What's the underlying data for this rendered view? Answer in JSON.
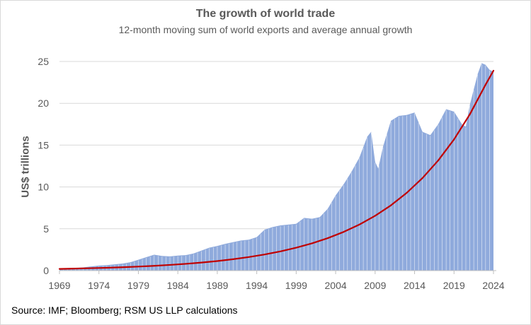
{
  "chart_data": {
    "type": "area",
    "title": "The growth of world trade",
    "subtitle": "12-month moving sum of world exports and average annual growth",
    "xlabel": "",
    "ylabel": "US$ trillions",
    "source": "Source: IMF; Bloomberg; RSM US LLP calculations",
    "xlim": [
      1969,
      2024
    ],
    "ylim": [
      0,
      25
    ],
    "grid": "horizontal",
    "legend": "none",
    "x_ticks": [
      "1969",
      "1974",
      "1979",
      "1984",
      "1989",
      "1994",
      "1999",
      "2004",
      "2009",
      "2014",
      "2019",
      "2024"
    ],
    "y_ticks": [
      "0",
      "5",
      "10",
      "15",
      "20",
      "25"
    ],
    "series": [
      {
        "type": "area",
        "color": "#8faadc",
        "x": [
          1969,
          1970,
          1971,
          1972,
          1973,
          1974,
          1975,
          1976,
          1977,
          1978,
          1979,
          1980,
          1981,
          1982,
          1983,
          1984,
          1985,
          1986,
          1987,
          1988,
          1989,
          1990,
          1991,
          1992,
          1993,
          1994,
          1995,
          1996,
          1997,
          1998,
          1999,
          2000,
          2001,
          2002,
          2003,
          2004,
          2005,
          2006,
          2007,
          2008,
          2008.5,
          2009,
          2009.4,
          2010,
          2011,
          2012,
          2013,
          2014,
          2015,
          2016,
          2017,
          2018,
          2019,
          2020,
          2020.5,
          2021,
          2022,
          2022.5,
          2023,
          2023.5,
          2024
        ],
        "values": [
          0.25,
          0.3,
          0.32,
          0.38,
          0.5,
          0.6,
          0.65,
          0.75,
          0.85,
          1.0,
          1.3,
          1.6,
          1.9,
          1.75,
          1.7,
          1.8,
          1.85,
          2.05,
          2.4,
          2.75,
          2.95,
          3.2,
          3.4,
          3.6,
          3.7,
          4.0,
          4.9,
          5.2,
          5.4,
          5.5,
          5.6,
          6.3,
          6.2,
          6.4,
          7.4,
          9.0,
          10.3,
          11.8,
          13.5,
          16.0,
          16.6,
          13.0,
          12.2,
          14.8,
          17.9,
          18.5,
          18.6,
          18.9,
          16.6,
          16.2,
          17.5,
          19.3,
          19.0,
          17.5,
          17.2,
          19.8,
          23.5,
          24.8,
          24.6,
          24.0,
          23.8
        ]
      },
      {
        "type": "line",
        "color": "#c00000",
        "x": [
          1969,
          1971,
          1973,
          1975,
          1977,
          1979,
          1981,
          1983,
          1985,
          1987,
          1989,
          1991,
          1993,
          1995,
          1997,
          1999,
          2001,
          2003,
          2005,
          2007,
          2009,
          2011,
          2013,
          2015,
          2017,
          2019,
          2021,
          2023,
          2024
        ],
        "values": [
          0.2,
          0.24,
          0.29,
          0.34,
          0.4,
          0.48,
          0.57,
          0.68,
          0.81,
          0.96,
          1.14,
          1.36,
          1.62,
          1.93,
          2.3,
          2.74,
          3.26,
          3.88,
          4.62,
          5.5,
          6.55,
          7.8,
          9.29,
          11.06,
          13.17,
          15.68,
          18.67,
          22.23,
          23.9
        ]
      }
    ]
  }
}
